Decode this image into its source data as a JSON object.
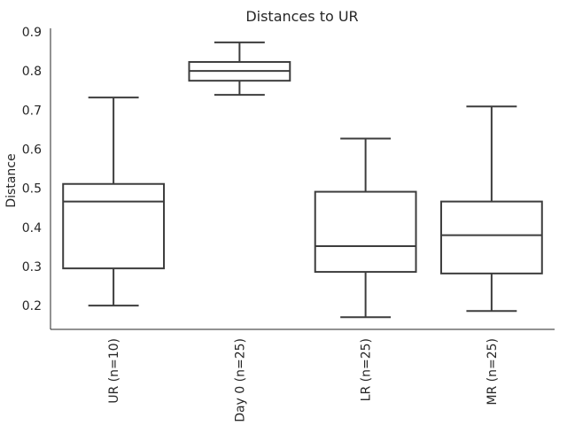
{
  "chart_data": {
    "type": "box",
    "title": "Distances to UR",
    "y_label": "Distance",
    "categories": [
      "UR (n=10)",
      "Day 0 (n=25)",
      "LR (n=25)",
      "MR (n=25)"
    ],
    "whisker_low": [
      0.2,
      0.739,
      0.17,
      0.186
    ],
    "q1": [
      0.295,
      0.775,
      0.286,
      0.282
    ],
    "median": [
      0.466,
      0.8,
      0.352,
      0.38
    ],
    "q3": [
      0.511,
      0.823,
      0.491,
      0.466
    ],
    "whisker_high": [
      0.732,
      0.873,
      0.627,
      0.709
    ],
    "color": "#3d3d3d",
    "ylim": [
      0.139,
      0.909
    ],
    "yticks": [
      0.2,
      0.3,
      0.4,
      0.5,
      0.6,
      0.7,
      0.8,
      0.9
    ],
    "grid": false
  }
}
